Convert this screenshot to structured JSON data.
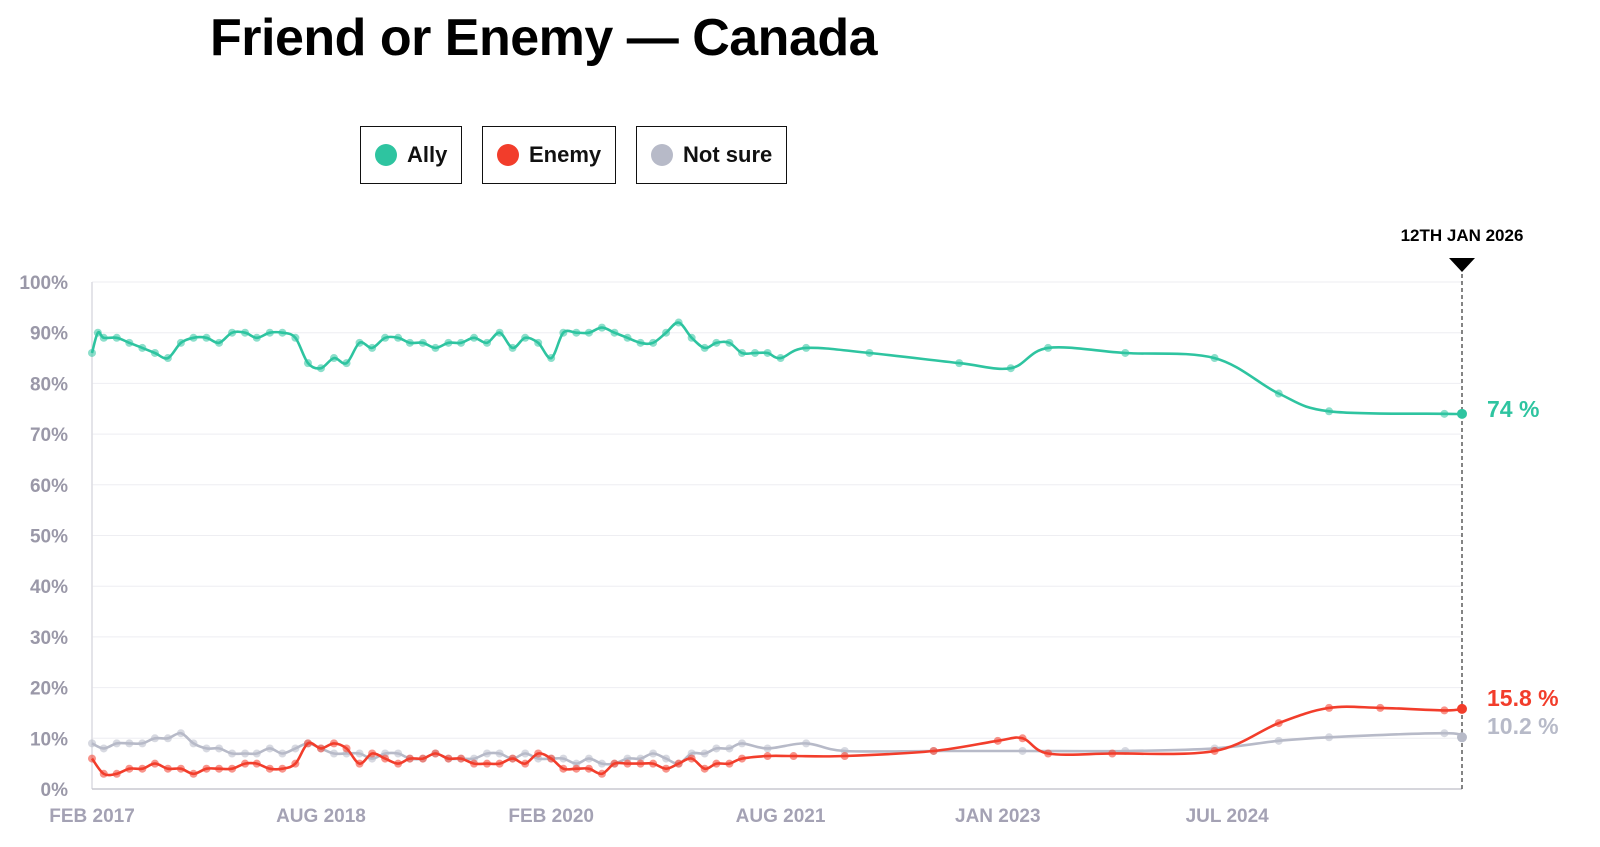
{
  "title": "Friend or Enemy — Canada",
  "legend": [
    {
      "label": "Ally",
      "color": "#2ec4a0"
    },
    {
      "label": "Enemy",
      "color": "#f23d2b"
    },
    {
      "label": "Not sure",
      "color": "#b7bac8"
    }
  ],
  "chart_data": {
    "type": "line",
    "title": "Friend or Enemy — Canada",
    "xlabel": "",
    "ylabel": "",
    "ylim": [
      0,
      100
    ],
    "xlim": [
      "2017-02-01",
      "2026-01-12"
    ],
    "y_ticks": [
      "0%",
      "10%",
      "20%",
      "30%",
      "40%",
      "50%",
      "60%",
      "70%",
      "80%",
      "90%",
      "100%"
    ],
    "x_ticks": [
      {
        "date": "2017-02-01",
        "label": "FEB 2017"
      },
      {
        "date": "2018-08-01",
        "label": "AUG 2018"
      },
      {
        "date": "2020-02-01",
        "label": "FEB 2020"
      },
      {
        "date": "2021-08-01",
        "label": "AUG 2021"
      },
      {
        "date": "2023-01-01",
        "label": "JAN 2023"
      },
      {
        "date": "2024-07-01",
        "label": "JUL 2024"
      }
    ],
    "current_date_label": "12TH JAN 2026",
    "grid": true,
    "legend_position": "top-left",
    "series": [
      {
        "name": "Ally",
        "color": "#2ec4a0",
        "end_label": "74 %",
        "points": [
          [
            "2017-02-01",
            86
          ],
          [
            "2017-02-15",
            90
          ],
          [
            "2017-03-01",
            89
          ],
          [
            "2017-04-01",
            89
          ],
          [
            "2017-05-01",
            88
          ],
          [
            "2017-06-01",
            87
          ],
          [
            "2017-07-01",
            86
          ],
          [
            "2017-08-01",
            85
          ],
          [
            "2017-09-01",
            88
          ],
          [
            "2017-10-01",
            89
          ],
          [
            "2017-11-01",
            89
          ],
          [
            "2017-12-01",
            88
          ],
          [
            "2018-01-01",
            90
          ],
          [
            "2018-02-01",
            90
          ],
          [
            "2018-03-01",
            89
          ],
          [
            "2018-04-01",
            90
          ],
          [
            "2018-05-01",
            90
          ],
          [
            "2018-06-01",
            89
          ],
          [
            "2018-07-01",
            84
          ],
          [
            "2018-08-01",
            83
          ],
          [
            "2018-09-01",
            85
          ],
          [
            "2018-10-01",
            84
          ],
          [
            "2018-11-01",
            88
          ],
          [
            "2018-12-01",
            87
          ],
          [
            "2019-01-01",
            89
          ],
          [
            "2019-02-01",
            89
          ],
          [
            "2019-03-01",
            88
          ],
          [
            "2019-04-01",
            88
          ],
          [
            "2019-05-01",
            87
          ],
          [
            "2019-06-01",
            88
          ],
          [
            "2019-07-01",
            88
          ],
          [
            "2019-08-01",
            89
          ],
          [
            "2019-09-01",
            88
          ],
          [
            "2019-10-01",
            90
          ],
          [
            "2019-11-01",
            87
          ],
          [
            "2019-12-01",
            89
          ],
          [
            "2020-01-01",
            88
          ],
          [
            "2020-02-01",
            85
          ],
          [
            "2020-03-01",
            90
          ],
          [
            "2020-04-01",
            90
          ],
          [
            "2020-05-01",
            90
          ],
          [
            "2020-06-01",
            91
          ],
          [
            "2020-07-01",
            90
          ],
          [
            "2020-08-01",
            89
          ],
          [
            "2020-09-01",
            88
          ],
          [
            "2020-10-01",
            88
          ],
          [
            "2020-11-01",
            90
          ],
          [
            "2020-12-01",
            92
          ],
          [
            "2021-01-01",
            89
          ],
          [
            "2021-02-01",
            87
          ],
          [
            "2021-03-01",
            88
          ],
          [
            "2021-04-01",
            88
          ],
          [
            "2021-05-01",
            86
          ],
          [
            "2021-06-01",
            86
          ],
          [
            "2021-07-01",
            86
          ],
          [
            "2021-08-01",
            85
          ],
          [
            "2021-10-01",
            87
          ],
          [
            "2022-03-01",
            86
          ],
          [
            "2022-10-01",
            84
          ],
          [
            "2023-02-01",
            83
          ],
          [
            "2023-05-01",
            87
          ],
          [
            "2023-11-01",
            86
          ],
          [
            "2024-06-01",
            85
          ],
          [
            "2024-11-01",
            78
          ],
          [
            "2025-03-01",
            74.5
          ],
          [
            "2025-12-01",
            74
          ],
          [
            "2026-01-12",
            74
          ]
        ]
      },
      {
        "name": "Enemy",
        "color": "#f23d2b",
        "end_label": "15.8 %",
        "points": [
          [
            "2017-02-01",
            6
          ],
          [
            "2017-03-01",
            3
          ],
          [
            "2017-04-01",
            3
          ],
          [
            "2017-05-01",
            4
          ],
          [
            "2017-06-01",
            4
          ],
          [
            "2017-07-01",
            5
          ],
          [
            "2017-08-01",
            4
          ],
          [
            "2017-09-01",
            4
          ],
          [
            "2017-10-01",
            3
          ],
          [
            "2017-11-01",
            4
          ],
          [
            "2017-12-01",
            4
          ],
          [
            "2018-01-01",
            4
          ],
          [
            "2018-02-01",
            5
          ],
          [
            "2018-03-01",
            5
          ],
          [
            "2018-04-01",
            4
          ],
          [
            "2018-05-01",
            4
          ],
          [
            "2018-06-01",
            5
          ],
          [
            "2018-07-01",
            9
          ],
          [
            "2018-08-01",
            8
          ],
          [
            "2018-09-01",
            9
          ],
          [
            "2018-10-01",
            8
          ],
          [
            "2018-11-01",
            5
          ],
          [
            "2018-12-01",
            7
          ],
          [
            "2019-01-01",
            6
          ],
          [
            "2019-02-01",
            5
          ],
          [
            "2019-03-01",
            6
          ],
          [
            "2019-04-01",
            6
          ],
          [
            "2019-05-01",
            7
          ],
          [
            "2019-06-01",
            6
          ],
          [
            "2019-07-01",
            6
          ],
          [
            "2019-08-01",
            5
          ],
          [
            "2019-09-01",
            5
          ],
          [
            "2019-10-01",
            5
          ],
          [
            "2019-11-01",
            6
          ],
          [
            "2019-12-01",
            5
          ],
          [
            "2020-01-01",
            7
          ],
          [
            "2020-02-01",
            6
          ],
          [
            "2020-03-01",
            4
          ],
          [
            "2020-04-01",
            4
          ],
          [
            "2020-05-01",
            4
          ],
          [
            "2020-06-01",
            3
          ],
          [
            "2020-07-01",
            5
          ],
          [
            "2020-08-01",
            5
          ],
          [
            "2020-09-01",
            5
          ],
          [
            "2020-10-01",
            5
          ],
          [
            "2020-11-01",
            4
          ],
          [
            "2020-12-01",
            5
          ],
          [
            "2021-01-01",
            6
          ],
          [
            "2021-02-01",
            4
          ],
          [
            "2021-03-01",
            5
          ],
          [
            "2021-04-01",
            5
          ],
          [
            "2021-05-01",
            6
          ],
          [
            "2021-07-01",
            6.5
          ],
          [
            "2021-09-01",
            6.5
          ],
          [
            "2022-01-01",
            6.5
          ],
          [
            "2022-08-01",
            7.5
          ],
          [
            "2023-01-01",
            9.5
          ],
          [
            "2023-03-01",
            10
          ],
          [
            "2023-05-01",
            7
          ],
          [
            "2023-10-01",
            7
          ],
          [
            "2024-06-01",
            7.5
          ],
          [
            "2024-11-01",
            13
          ],
          [
            "2025-03-01",
            16
          ],
          [
            "2025-07-01",
            16
          ],
          [
            "2025-12-01",
            15.5
          ],
          [
            "2026-01-12",
            15.8
          ]
        ]
      },
      {
        "name": "Not sure",
        "color": "#b7bac8",
        "end_label": "10.2 %",
        "points": [
          [
            "2017-02-01",
            9
          ],
          [
            "2017-03-01",
            8
          ],
          [
            "2017-04-01",
            9
          ],
          [
            "2017-05-01",
            9
          ],
          [
            "2017-06-01",
            9
          ],
          [
            "2017-07-01",
            10
          ],
          [
            "2017-08-01",
            10
          ],
          [
            "2017-09-01",
            11
          ],
          [
            "2017-10-01",
            9
          ],
          [
            "2017-11-01",
            8
          ],
          [
            "2017-12-01",
            8
          ],
          [
            "2018-01-01",
            7
          ],
          [
            "2018-02-01",
            7
          ],
          [
            "2018-03-01",
            7
          ],
          [
            "2018-04-01",
            8
          ],
          [
            "2018-05-01",
            7
          ],
          [
            "2018-06-01",
            8
          ],
          [
            "2018-07-01",
            9
          ],
          [
            "2018-08-01",
            8
          ],
          [
            "2018-09-01",
            7
          ],
          [
            "2018-10-01",
            7
          ],
          [
            "2018-11-01",
            7
          ],
          [
            "2018-12-01",
            6
          ],
          [
            "2019-01-01",
            7
          ],
          [
            "2019-02-01",
            7
          ],
          [
            "2019-03-01",
            6
          ],
          [
            "2019-04-01",
            6
          ],
          [
            "2019-05-01",
            7
          ],
          [
            "2019-06-01",
            6
          ],
          [
            "2019-07-01",
            6
          ],
          [
            "2019-08-01",
            6
          ],
          [
            "2019-09-01",
            7
          ],
          [
            "2019-10-01",
            7
          ],
          [
            "2019-11-01",
            6
          ],
          [
            "2019-12-01",
            7
          ],
          [
            "2020-01-01",
            6
          ],
          [
            "2020-02-01",
            6
          ],
          [
            "2020-03-01",
            6
          ],
          [
            "2020-04-01",
            5
          ],
          [
            "2020-05-01",
            6
          ],
          [
            "2020-06-01",
            5
          ],
          [
            "2020-07-01",
            5
          ],
          [
            "2020-08-01",
            6
          ],
          [
            "2020-09-01",
            6
          ],
          [
            "2020-10-01",
            7
          ],
          [
            "2020-11-01",
            6
          ],
          [
            "2020-12-01",
            5
          ],
          [
            "2021-01-01",
            7
          ],
          [
            "2021-02-01",
            7
          ],
          [
            "2021-03-01",
            8
          ],
          [
            "2021-04-01",
            8
          ],
          [
            "2021-05-01",
            9
          ],
          [
            "2021-07-01",
            8
          ],
          [
            "2021-10-01",
            9
          ],
          [
            "2022-01-01",
            7.5
          ],
          [
            "2022-08-01",
            7.5
          ],
          [
            "2023-03-01",
            7.5
          ],
          [
            "2023-11-01",
            7.5
          ],
          [
            "2024-06-01",
            8
          ],
          [
            "2024-11-01",
            9.5
          ],
          [
            "2025-03-01",
            10.2
          ],
          [
            "2025-12-01",
            11
          ],
          [
            "2026-01-12",
            10.2
          ]
        ]
      }
    ]
  }
}
